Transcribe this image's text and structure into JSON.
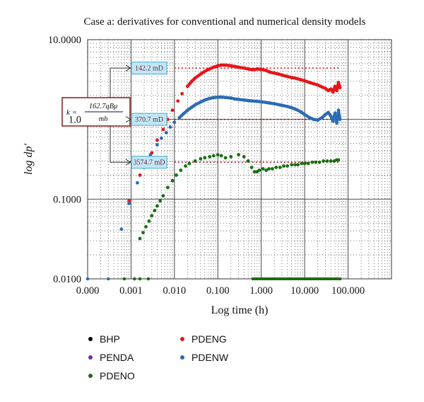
{
  "chart_data": {
    "type": "scatter",
    "title": "Case a: derivatives for conventional and numerical density models",
    "xlabel": "Log time (h)",
    "ylabel": "log dp'",
    "x_scale": "log",
    "y_scale": "log",
    "xlim": [
      0.0001,
      1000
    ],
    "ylim": [
      0.01,
      10
    ],
    "grid": true,
    "x_ticks": [
      {
        "value": 0.0001,
        "label": "0.000"
      },
      {
        "value": 0.001,
        "label": "0.001"
      },
      {
        "value": 0.01,
        "label": "0.010"
      },
      {
        "value": 0.1,
        "label": "0.100"
      },
      {
        "value": 1,
        "label": "1.000"
      },
      {
        "value": 10,
        "label": "10.000"
      },
      {
        "value": 100,
        "label": "100.000"
      }
    ],
    "y_ticks": [
      {
        "value": 0.01,
        "label": "0.0100"
      },
      {
        "value": 0.1,
        "label": "0.1000"
      },
      {
        "value": 1,
        "label": "1.0"
      },
      {
        "value": 10,
        "label": "10.0000"
      }
    ],
    "legend_position": "bottom",
    "series": [
      {
        "name": "BHP",
        "color": "#000000",
        "points": []
      },
      {
        "name": "PENDA",
        "color": "#7030a0",
        "points": []
      },
      {
        "name": "PDENO",
        "color": "#1a6e14",
        "points": [
          [
            0.0016,
            0.032
          ],
          [
            0.0019,
            0.038
          ],
          [
            0.0022,
            0.045
          ],
          [
            0.0026,
            0.053
          ],
          [
            0.003,
            0.062
          ],
          [
            0.0035,
            0.072
          ],
          [
            0.004,
            0.082
          ],
          [
            0.0047,
            0.095
          ],
          [
            0.0055,
            0.11
          ],
          [
            0.007,
            0.14
          ],
          [
            0.009,
            0.17
          ],
          [
            0.011,
            0.2
          ],
          [
            0.014,
            0.23
          ],
          [
            0.018,
            0.26
          ],
          [
            0.022,
            0.28
          ],
          [
            0.03,
            0.3
          ],
          [
            0.04,
            0.32
          ],
          [
            0.05,
            0.33
          ],
          [
            0.065,
            0.34
          ],
          [
            0.08,
            0.35
          ],
          [
            0.1,
            0.36
          ],
          [
            0.12,
            0.35
          ],
          [
            0.15,
            0.33
          ],
          [
            0.2,
            0.34
          ],
          [
            0.3,
            0.36
          ],
          [
            0.4,
            0.34
          ],
          [
            0.5,
            0.3
          ],
          [
            0.6,
            0.25
          ],
          [
            0.7,
            0.22
          ],
          [
            0.8,
            0.22
          ],
          [
            0.9,
            0.23
          ],
          [
            1.1,
            0.24
          ],
          [
            1.3,
            0.23
          ],
          [
            1.5,
            0.24
          ],
          [
            1.8,
            0.24
          ],
          [
            2.2,
            0.25
          ],
          [
            2.7,
            0.25
          ],
          [
            3.3,
            0.26
          ],
          [
            4,
            0.26
          ],
          [
            5,
            0.27
          ],
          [
            6,
            0.27
          ],
          [
            7,
            0.27
          ],
          [
            8.5,
            0.28
          ],
          [
            10,
            0.28
          ],
          [
            12,
            0.28
          ],
          [
            15,
            0.29
          ],
          [
            18,
            0.29
          ],
          [
            22,
            0.29
          ],
          [
            27,
            0.3
          ],
          [
            33,
            0.3
          ],
          [
            40,
            0.3
          ],
          [
            48,
            0.3
          ],
          [
            55,
            0.31
          ],
          [
            60,
            0.31
          ]
        ]
      },
      {
        "name": "PDENG",
        "color": "#e8151b",
        "points": [
          [
            0.0009,
            0.095
          ],
          [
            0.0016,
            0.2
          ],
          [
            0.0022,
            0.28
          ],
          [
            0.003,
            0.38
          ],
          [
            0.004,
            0.55
          ],
          [
            0.0055,
            0.75
          ],
          [
            0.007,
            1.0
          ],
          [
            0.009,
            1.3
          ],
          [
            0.012,
            1.7
          ],
          [
            0.015,
            2.1
          ],
          [
            0.02,
            2.6
          ],
          [
            0.025,
            3.0
          ],
          [
            0.03,
            3.3
          ],
          [
            0.04,
            3.7
          ],
          [
            0.05,
            4.0
          ],
          [
            0.065,
            4.3
          ],
          [
            0.08,
            4.5
          ],
          [
            0.1,
            4.7
          ],
          [
            0.12,
            4.8
          ],
          [
            0.15,
            4.8
          ],
          [
            0.2,
            4.7
          ],
          [
            0.25,
            4.6
          ],
          [
            0.3,
            4.5
          ],
          [
            0.4,
            4.4
          ],
          [
            0.5,
            4.3
          ],
          [
            0.6,
            4.2
          ],
          [
            0.7,
            4.2
          ],
          [
            0.8,
            4.3
          ],
          [
            1,
            4.25
          ],
          [
            1.3,
            4.1
          ],
          [
            1.6,
            3.9
          ],
          [
            2,
            3.8
          ],
          [
            2.5,
            3.7
          ],
          [
            3,
            3.6
          ],
          [
            4,
            3.45
          ],
          [
            5,
            3.35
          ],
          [
            6,
            3.3
          ],
          [
            8,
            3.15
          ],
          [
            10,
            3.05
          ],
          [
            13,
            2.9
          ],
          [
            16,
            2.8
          ],
          [
            20,
            2.7
          ],
          [
            25,
            2.55
          ],
          [
            30,
            2.45
          ],
          [
            35,
            2.3
          ],
          [
            40,
            2.4
          ],
          [
            45,
            2.2
          ],
          [
            50,
            2.6
          ],
          [
            55,
            2.3
          ],
          [
            60,
            2.9
          ],
          [
            65,
            2.5
          ]
        ]
      },
      {
        "name": "PDENW",
        "color": "#2b6cb3",
        "points": [
          [
            0.0006,
            0.042
          ],
          [
            0.0009,
            0.088
          ],
          [
            0.0014,
            0.16
          ],
          [
            0.002,
            0.25
          ],
          [
            0.0028,
            0.36
          ],
          [
            0.004,
            0.48
          ],
          [
            0.005,
            0.58
          ],
          [
            0.0065,
            0.68
          ],
          [
            0.008,
            0.8
          ],
          [
            0.01,
            0.92
          ],
          [
            0.013,
            1.05
          ],
          [
            0.016,
            1.17
          ],
          [
            0.02,
            1.3
          ],
          [
            0.025,
            1.42
          ],
          [
            0.03,
            1.52
          ],
          [
            0.04,
            1.65
          ],
          [
            0.05,
            1.75
          ],
          [
            0.065,
            1.83
          ],
          [
            0.08,
            1.88
          ],
          [
            0.1,
            1.9
          ],
          [
            0.12,
            1.9
          ],
          [
            0.15,
            1.88
          ],
          [
            0.2,
            1.85
          ],
          [
            0.25,
            1.8
          ],
          [
            0.3,
            1.78
          ],
          [
            0.4,
            1.75
          ],
          [
            0.5,
            1.72
          ],
          [
            0.6,
            1.7
          ],
          [
            0.8,
            1.68
          ],
          [
            1,
            1.66
          ],
          [
            1.3,
            1.63
          ],
          [
            1.6,
            1.6
          ],
          [
            2,
            1.57
          ],
          [
            2.5,
            1.53
          ],
          [
            3,
            1.5
          ],
          [
            4,
            1.45
          ],
          [
            5,
            1.4
          ],
          [
            6,
            1.35
          ],
          [
            8,
            1.25
          ],
          [
            10,
            1.15
          ],
          [
            13,
            1.05
          ],
          [
            16,
            1.0
          ],
          [
            20,
            0.98
          ],
          [
            25,
            1.05
          ],
          [
            30,
            1.15
          ],
          [
            35,
            1.22
          ],
          [
            40,
            1.1
          ],
          [
            45,
            0.95
          ],
          [
            50,
            1.2
          ],
          [
            55,
            0.9
          ],
          [
            60,
            1.3
          ],
          [
            65,
            1.0
          ]
        ]
      }
    ],
    "annotations": [
      {
        "text": "142.2 mD",
        "y": 4.4
      },
      {
        "text": "370.7 mD",
        "y": 1.0
      },
      {
        "text": "3574.7 mD",
        "y": 0.29
      }
    ],
    "formula": {
      "lhs": "k =",
      "numerator": "162.7qBμ",
      "denominator": "mh"
    }
  }
}
